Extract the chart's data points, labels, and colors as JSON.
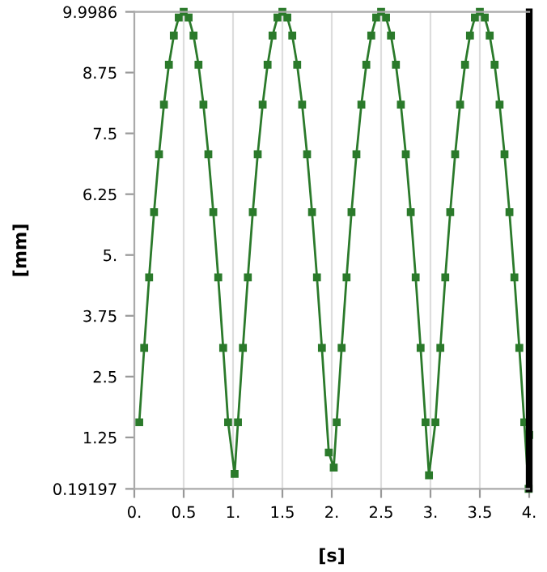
{
  "chart_data": {
    "type": "line",
    "xlabel": "[s]",
    "ylabel": "[mm]",
    "x": [
      0.05,
      0.1,
      0.15,
      0.2,
      0.25,
      0.3,
      0.35,
      0.4,
      0.45,
      0.5,
      0.55,
      0.6,
      0.65,
      0.7,
      0.75,
      0.8,
      0.85,
      0.9,
      0.95,
      1.016,
      1.05,
      1.1,
      1.15,
      1.2,
      1.25,
      1.3,
      1.35,
      1.4,
      1.45,
      1.5,
      1.55,
      1.6,
      1.65,
      1.7,
      1.75,
      1.8,
      1.85,
      1.9,
      1.97,
      2.02,
      2.05,
      2.1,
      2.15,
      2.2,
      2.25,
      2.3,
      2.35,
      2.4,
      2.45,
      2.5,
      2.55,
      2.6,
      2.65,
      2.7,
      2.75,
      2.8,
      2.85,
      2.9,
      2.95,
      2.985,
      3.05,
      3.1,
      3.15,
      3.2,
      3.25,
      3.3,
      3.35,
      3.4,
      3.45,
      3.5,
      3.55,
      3.6,
      3.65,
      3.7,
      3.75,
      3.8,
      3.85,
      3.9,
      3.95,
      3.994,
      4.0
    ],
    "series": [
      {
        "color": "#2b7a2b",
        "values": [
          1.56,
          3.09,
          4.54,
          5.88,
          7.07,
          8.09,
          8.91,
          9.51,
          9.88,
          9.9986,
          9.88,
          9.51,
          8.91,
          8.09,
          7.07,
          5.88,
          4.54,
          3.09,
          1.56,
          0.5,
          1.56,
          3.09,
          4.54,
          5.88,
          7.07,
          8.09,
          8.91,
          9.51,
          9.88,
          9.9986,
          9.88,
          9.51,
          8.91,
          8.09,
          7.07,
          5.88,
          4.54,
          3.09,
          0.94,
          0.63,
          1.56,
          3.09,
          4.54,
          5.88,
          7.07,
          8.09,
          8.91,
          9.51,
          9.88,
          9.9986,
          9.88,
          9.51,
          8.91,
          8.09,
          7.07,
          5.88,
          4.54,
          3.09,
          1.56,
          0.47,
          1.56,
          3.09,
          4.54,
          5.88,
          7.07,
          8.09,
          8.91,
          9.51,
          9.88,
          9.9986,
          9.88,
          9.51,
          8.91,
          8.09,
          7.07,
          5.88,
          4.54,
          3.09,
          1.56,
          0.19197,
          1.3
        ]
      }
    ],
    "xlim": [
      0,
      4
    ],
    "ylim": [
      0.19197,
      9.9986
    ],
    "xticks": [
      {
        "value": 0,
        "label": "0."
      },
      0.5,
      {
        "value": 1,
        "label": "1."
      },
      1.5,
      {
        "value": 2,
        "label": "2."
      },
      2.5,
      {
        "value": 3,
        "label": "3."
      },
      3.5,
      {
        "value": 4,
        "label": "4."
      }
    ],
    "yticks": [
      0.19197,
      1.25,
      2.5,
      3.75,
      {
        "value": 5,
        "label": "5."
      },
      6.25,
      7.5,
      8.75,
      9.9986
    ],
    "grid": "x",
    "marker": "square",
    "line_style": "solid"
  }
}
